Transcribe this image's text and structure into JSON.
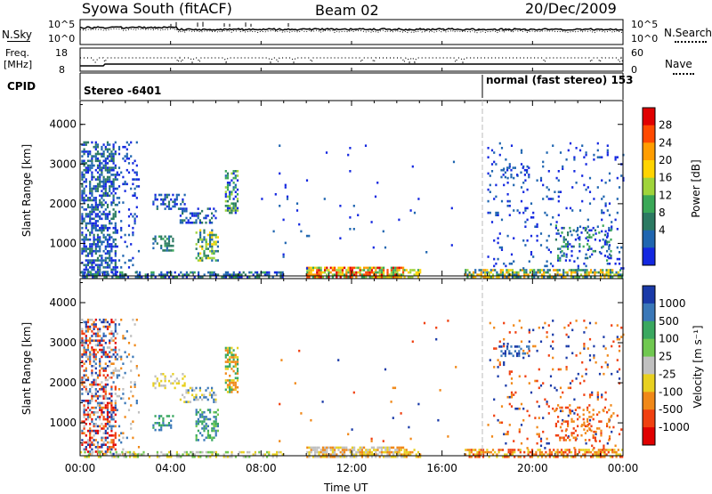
{
  "header": {
    "station": "Syowa South (fitACF)",
    "beam": "Beam 02",
    "date": "20/Dec/2009"
  },
  "noise_panel": {
    "left_label": "N.Sky",
    "right_label": "N.Search",
    "left_ticks": [
      "10^5",
      "10^0"
    ],
    "right_ticks": [
      "10^5",
      "10^0"
    ]
  },
  "freq_panel": {
    "left_label_1": "Freq.",
    "left_label_2": "[MHz]",
    "right_label": "Nave",
    "left_ticks": [
      "18",
      "8"
    ],
    "right_ticks": [
      "60",
      "0"
    ]
  },
  "cpid_panel": {
    "label": "CPID",
    "segments": [
      {
        "text": "Stereo -6401",
        "start_hour": 0
      },
      {
        "text": "normal (fast stereo) 153",
        "start_hour": 18
      }
    ]
  },
  "chart_data": [
    {
      "type": "heatmap",
      "name": "power",
      "ylabel": "Slant Range [km]",
      "ylim": [
        180,
        4600
      ],
      "yticks": [
        1000,
        2000,
        3000,
        4000
      ],
      "xlim": [
        0,
        24
      ],
      "colorbar": {
        "label": "Power [dB]",
        "ticks": [
          "28",
          "24",
          "20",
          "16",
          "12",
          "8",
          "4"
        ],
        "colors": [
          "#e00000",
          "#ff4a00",
          "#ff9d00",
          "#ffd400",
          "#9fd43a",
          "#3aa857",
          "#2c7a62",
          "#2066b0",
          "#1428e0"
        ]
      }
    },
    {
      "type": "heatmap",
      "name": "velocity",
      "ylabel": "Slant Range [km]",
      "ylim": [
        180,
        4600
      ],
      "yticks": [
        1000,
        2000,
        3000,
        4000
      ],
      "xlim": [
        0,
        24
      ],
      "colorbar": {
        "label": "Velocity [m s⁻¹]",
        "ticks": [
          "1000",
          "500",
          "100",
          "25",
          "-25",
          "-100",
          "-500",
          "-1000"
        ],
        "colors": [
          "#1a3aa8",
          "#3a78b8",
          "#3aa860",
          "#70c850",
          "#c0c0c0",
          "#e8d020",
          "#f08818",
          "#f04010",
          "#e00000"
        ]
      }
    }
  ],
  "x_axis": {
    "label": "Time UT",
    "ticks": [
      "00:00",
      "04:00",
      "08:00",
      "12:00",
      "16:00",
      "20:00",
      "00:00"
    ],
    "tick_hours": [
      0,
      4,
      8,
      12,
      16,
      20,
      24
    ]
  },
  "regions": {
    "power": [
      {
        "x0": 0.05,
        "x1": 1.6,
        "r0": 250,
        "r1": 3600,
        "density": 0.55,
        "c": [
          6,
          7,
          8
        ]
      },
      {
        "x0": 1.6,
        "x1": 2.6,
        "r0": 250,
        "r1": 3600,
        "density": 0.12,
        "c": [
          7,
          8
        ]
      },
      {
        "x0": 3.2,
        "x1": 4.6,
        "r0": 1900,
        "r1": 2300,
        "density": 0.45,
        "c": [
          6,
          7,
          8
        ]
      },
      {
        "x0": 4.4,
        "x1": 6.0,
        "r0": 1550,
        "r1": 1950,
        "density": 0.45,
        "c": [
          6,
          7,
          8
        ]
      },
      {
        "x0": 3.2,
        "x1": 4.1,
        "r0": 850,
        "r1": 1250,
        "density": 0.45,
        "c": [
          5,
          6,
          7
        ]
      },
      {
        "x0": 5.1,
        "x1": 6.1,
        "r0": 600,
        "r1": 1400,
        "density": 0.5,
        "c": [
          3,
          4,
          5,
          6,
          7
        ]
      },
      {
        "x0": 6.4,
        "x1": 7.0,
        "r0": 1800,
        "r1": 2900,
        "density": 0.55,
        "c": [
          4,
          5,
          6,
          7,
          8
        ]
      },
      {
        "x0": 0.0,
        "x1": 9.0,
        "r0": 180,
        "r1": 350,
        "density": 0.5,
        "c": [
          5,
          6,
          7,
          8
        ]
      },
      {
        "x0": 10.0,
        "x1": 14.3,
        "r0": 180,
        "r1": 450,
        "density": 0.75,
        "c": [
          0,
          1,
          2,
          3,
          4,
          5
        ]
      },
      {
        "x0": 14.3,
        "x1": 15.0,
        "r0": 180,
        "r1": 400,
        "density": 0.5,
        "c": [
          3,
          4,
          5
        ]
      },
      {
        "x0": 17.0,
        "x1": 24.0,
        "r0": 180,
        "r1": 400,
        "density": 0.65,
        "c": [
          2,
          3,
          4,
          5,
          6,
          7
        ]
      },
      {
        "x0": 18.0,
        "x1": 24.0,
        "r0": 400,
        "r1": 3600,
        "density": 0.06,
        "c": [
          7,
          8
        ]
      },
      {
        "x0": 18.5,
        "x1": 19.8,
        "r0": 2700,
        "r1": 2950,
        "density": 0.35,
        "c": [
          7,
          8
        ]
      },
      {
        "x0": 21.0,
        "x1": 23.5,
        "r0": 600,
        "r1": 1500,
        "density": 0.2,
        "c": [
          5,
          6,
          7,
          8
        ]
      },
      {
        "x0": 8.0,
        "x1": 17.0,
        "r0": 400,
        "r1": 3600,
        "density": 0.008,
        "c": [
          7,
          8
        ]
      }
    ],
    "velocity": [
      {
        "x0": 0.05,
        "x1": 1.6,
        "r0": 250,
        "r1": 3600,
        "density": 0.45,
        "c": [
          0,
          1,
          4,
          6,
          7,
          8
        ]
      },
      {
        "x0": 1.6,
        "x1": 2.6,
        "r0": 250,
        "r1": 3600,
        "density": 0.1,
        "c": [
          1,
          4,
          6
        ]
      },
      {
        "x0": 3.2,
        "x1": 4.6,
        "r0": 1900,
        "r1": 2300,
        "density": 0.4,
        "c": [
          4,
          5
        ]
      },
      {
        "x0": 4.4,
        "x1": 6.0,
        "r0": 1550,
        "r1": 1950,
        "density": 0.4,
        "c": [
          4,
          5,
          1
        ]
      },
      {
        "x0": 3.2,
        "x1": 4.1,
        "r0": 850,
        "r1": 1250,
        "density": 0.45,
        "c": [
          1,
          2
        ]
      },
      {
        "x0": 5.1,
        "x1": 6.1,
        "r0": 600,
        "r1": 1400,
        "density": 0.5,
        "c": [
          1,
          2,
          3
        ]
      },
      {
        "x0": 6.4,
        "x1": 7.0,
        "r0": 1800,
        "r1": 2900,
        "density": 0.55,
        "c": [
          5,
          6,
          2
        ]
      },
      {
        "x0": 0.0,
        "x1": 9.0,
        "r0": 180,
        "r1": 350,
        "density": 0.4,
        "c": [
          4,
          5,
          3
        ]
      },
      {
        "x0": 10.0,
        "x1": 14.3,
        "r0": 180,
        "r1": 450,
        "density": 0.75,
        "c": [
          4,
          4,
          5,
          6
        ]
      },
      {
        "x0": 14.3,
        "x1": 15.0,
        "r0": 180,
        "r1": 400,
        "density": 0.5,
        "c": [
          5,
          6
        ]
      },
      {
        "x0": 17.0,
        "x1": 24.0,
        "r0": 180,
        "r1": 400,
        "density": 0.6,
        "c": [
          6,
          7,
          5
        ]
      },
      {
        "x0": 18.0,
        "x1": 24.0,
        "r0": 400,
        "r1": 3600,
        "density": 0.06,
        "c": [
          0,
          6,
          7
        ]
      },
      {
        "x0": 18.5,
        "x1": 19.8,
        "r0": 2700,
        "r1": 2950,
        "density": 0.35,
        "c": [
          0,
          1
        ]
      },
      {
        "x0": 21.0,
        "x1": 23.5,
        "r0": 600,
        "r1": 1500,
        "density": 0.2,
        "c": [
          6,
          7
        ]
      },
      {
        "x0": 8.0,
        "x1": 17.0,
        "r0": 400,
        "r1": 3600,
        "density": 0.008,
        "c": [
          0,
          6,
          7
        ]
      }
    ]
  }
}
